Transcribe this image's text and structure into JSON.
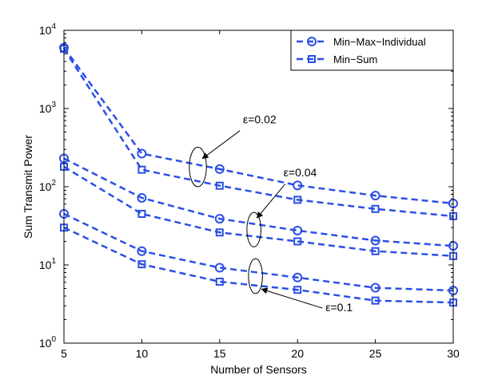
{
  "chart_data": {
    "type": "line",
    "yscale": "log",
    "xlabel": "Number of Sensors",
    "ylabel": "Sum Transmit Power",
    "xlim": [
      5,
      30
    ],
    "ylim": [
      1,
      10000
    ],
    "x_ticks": [
      5,
      10,
      15,
      20,
      25,
      30
    ],
    "y_tick_exponents": [
      0,
      1,
      2,
      3,
      4
    ],
    "y_tick_base": "10",
    "series_color": "#2b4fe6",
    "legend": {
      "placement": "top-right",
      "entries": [
        {
          "name": "Min−Max−Individual",
          "marker": "circle"
        },
        {
          "name": "Min−Sum",
          "marker": "square"
        }
      ]
    },
    "series": [
      {
        "name": "Min-Max-Individual",
        "epsilon": "0.02",
        "marker": "circle",
        "x": [
          5,
          10,
          15,
          20,
          25,
          30
        ],
        "values": [
          6000,
          265,
          168,
          104,
          77,
          61
        ]
      },
      {
        "name": "Min-Sum",
        "epsilon": "0.02",
        "marker": "square",
        "x": [
          5,
          10,
          15,
          20,
          25,
          30
        ],
        "values": [
          5800,
          165,
          103,
          68,
          52,
          42
        ]
      },
      {
        "name": "Min-Max-Individual",
        "epsilon": "0.04",
        "marker": "circle",
        "x": [
          5,
          10,
          15,
          20,
          25,
          30
        ],
        "values": [
          230,
          72,
          39,
          27.5,
          20.5,
          17.5
        ]
      },
      {
        "name": "Min-Sum",
        "epsilon": "0.04",
        "marker": "square",
        "x": [
          5,
          10,
          15,
          20,
          25,
          30
        ],
        "values": [
          180,
          45,
          26,
          20,
          15,
          13
        ]
      },
      {
        "name": "Min-Max-Individual",
        "epsilon": "0.1",
        "marker": "circle",
        "x": [
          5,
          10,
          15,
          20,
          25,
          30
        ],
        "values": [
          45,
          15,
          9.2,
          6.9,
          5.1,
          4.7
        ]
      },
      {
        "name": "Min-Sum",
        "epsilon": "0.1",
        "marker": "square",
        "x": [
          5,
          10,
          15,
          20,
          25,
          30
        ],
        "values": [
          30,
          10.2,
          6.1,
          4.8,
          3.5,
          3.3
        ]
      }
    ],
    "annotations": [
      {
        "text": "ε=0.02",
        "ellipse_center": [
          13.6,
          180
        ],
        "ellipse_halfwidth_x": 0.55,
        "ellipse_y_range": [
          100,
          320
        ],
        "text_at": [
          16.5,
          650
        ],
        "arrow_from": [
          16.3,
          520
        ],
        "arrow_to": [
          13.9,
          230
        ]
      },
      {
        "text": "ε=0.04",
        "ellipse_center": [
          17.2,
          28
        ],
        "ellipse_halfwidth_x": 0.45,
        "ellipse_y_range": [
          17,
          47
        ],
        "text_at": [
          19.1,
          135
        ],
        "arrow_from": [
          19.2,
          108
        ],
        "arrow_to": [
          17.4,
          40
        ]
      },
      {
        "text": "ε=0.1",
        "ellipse_center": [
          17.3,
          7.2
        ],
        "ellipse_halfwidth_x": 0.45,
        "ellipse_y_range": [
          4.3,
          12
        ],
        "text_at": [
          21.8,
          2.55
        ],
        "arrow_from": [
          21.6,
          2.8
        ],
        "arrow_to": [
          17.7,
          4.9
        ]
      }
    ]
  }
}
